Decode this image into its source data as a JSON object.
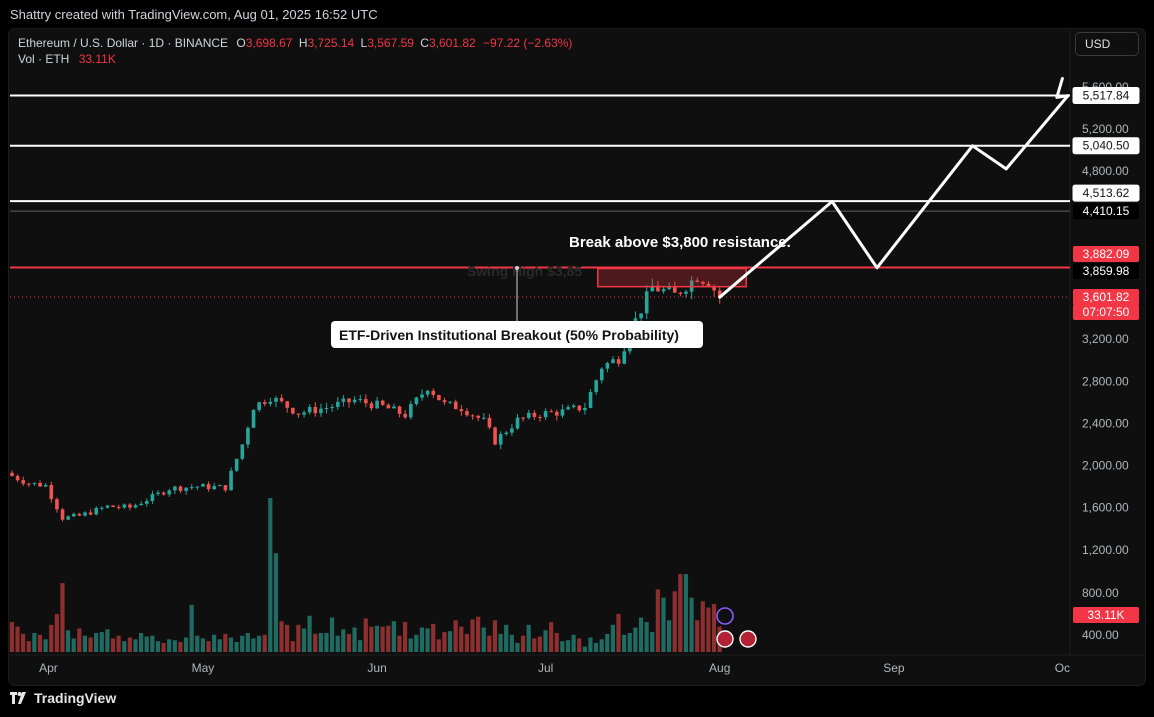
{
  "header": {
    "created_by": "Shattry created with TradingView.com, Aug 01, 2025 16:52 UTC"
  },
  "legend": {
    "symbol": "Ethereum / U.S. Dollar · 1D · BINANCE",
    "o_label": "O",
    "o": "3,698.67",
    "h_label": "H",
    "h": "3,725.14",
    "l_label": "L",
    "l": "3,567.59",
    "c_label": "C",
    "c": "3,601.82",
    "change": "−97.22 (−2.63%)",
    "vol_label": "Vol · ETH",
    "vol": "33.11K"
  },
  "currency_button": "USD",
  "footer": {
    "brand": "TradingView"
  },
  "colors": {
    "up": "#26a69a",
    "down": "#ef5350",
    "up_vol": "#1f6b62",
    "down_vol": "#8e2f2f",
    "resistance": "#f23645",
    "level_line": "#ffffff",
    "background": "#0f0f0f"
  },
  "chart_data": {
    "type": "candlestick",
    "title": "Ethereum / U.S. Dollar · 1D · BINANCE",
    "ylim": [
      300,
      5850
    ],
    "y_ticks": [
      "5,600.00",
      "5,200.00",
      "4,800.00",
      "3,200.00",
      "2,800.00",
      "2,400.00",
      "2,000.00",
      "1,600.00",
      "1,200.00",
      "800.00",
      "400.00"
    ],
    "x_ticks": [
      "Apr",
      "May",
      "Jun",
      "Jul",
      "Aug",
      "Sep",
      "Oc"
    ],
    "price_path": [
      [
        "2025-03-28",
        1900
      ],
      [
        "2025-03-31",
        1830
      ],
      [
        "2025-04-03",
        1810
      ],
      [
        "2025-04-06",
        1500
      ],
      [
        "2025-04-09",
        1520
      ],
      [
        "2025-04-14",
        1610
      ],
      [
        "2025-04-18",
        1600
      ],
      [
        "2025-04-22",
        1700
      ],
      [
        "2025-04-25",
        1780
      ],
      [
        "2025-04-30",
        1800
      ],
      [
        "2025-05-05",
        1790
      ],
      [
        "2025-05-08",
        2200
      ],
      [
        "2025-05-10",
        2560
      ],
      [
        "2025-05-13",
        2650
      ],
      [
        "2025-05-18",
        2500
      ],
      [
        "2025-05-23",
        2550
      ],
      [
        "2025-05-28",
        2620
      ],
      [
        "2025-06-02",
        2560
      ],
      [
        "2025-06-06",
        2480
      ],
      [
        "2025-06-10",
        2750
      ],
      [
        "2025-06-13",
        2580
      ],
      [
        "2025-06-16",
        2550
      ],
      [
        "2025-06-20",
        2420
      ],
      [
        "2025-06-22",
        2230
      ],
      [
        "2025-06-26",
        2430
      ],
      [
        "2025-06-30",
        2490
      ],
      [
        "2025-07-04",
        2510
      ],
      [
        "2025-07-08",
        2560
      ],
      [
        "2025-07-11",
        2940
      ],
      [
        "2025-07-14",
        3020
      ],
      [
        "2025-07-17",
        3380
      ],
      [
        "2025-07-20",
        3700
      ],
      [
        "2025-07-24",
        3620
      ],
      [
        "2025-07-28",
        3800
      ],
      [
        "2025-07-30",
        3750
      ],
      [
        "2025-08-01",
        3601.82
      ]
    ],
    "volume_bars": [
      330,
      280,
      200,
      120,
      210,
      190,
      140,
      300,
      420,
      760,
      240,
      150,
      260,
      180,
      160,
      210,
      220,
      250,
      150,
      180,
      120,
      160,
      140,
      210,
      170,
      180,
      120,
      100,
      140,
      130,
      110,
      160,
      520,
      180,
      150,
      120,
      190,
      140,
      200,
      160,
      110,
      180,
      210,
      150,
      180,
      190,
      1700,
      1090,
      340,
      300,
      120,
      300,
      260,
      400,
      200,
      210,
      210,
      380,
      180,
      250,
      200,
      270,
      130,
      370,
      280,
      290,
      280,
      290,
      340,
      180,
      330,
      150,
      190,
      270,
      260,
      310,
      140,
      220,
      230,
      350,
      280,
      200,
      360,
      390,
      270,
      180,
      350,
      200,
      300,
      190,
      100,
      180,
      300,
      150,
      170,
      240,
      330,
      210,
      120,
      130,
      190,
      150,
      60,
      160,
      100,
      140,
      200,
      300,
      420,
      190,
      210,
      270,
      380,
      330,
      220,
      690,
      600,
      350,
      670,
      860,
      860,
      600,
      350,
      560,
      490,
      530,
      280,
      360,
      330
    ],
    "levels": [
      {
        "label": "5,517.84",
        "value": 5517.84,
        "color": "#ffffff"
      },
      {
        "label": "5,040.50",
        "value": 5040.5,
        "color": "#ffffff"
      },
      {
        "label": "4,513.62",
        "value": 4513.62,
        "color": "#ffffff"
      },
      {
        "label": "4,410.15",
        "value": 4410.15,
        "color": "#ffffff"
      },
      {
        "label": "3,882.09",
        "value": 3882.09,
        "color": "#f23645"
      },
      {
        "label": "3,859.98",
        "value": 3859.98,
        "color": "#ffffff"
      },
      {
        "label": "3,601.82",
        "value": 3601.82,
        "color": "#f23645"
      }
    ],
    "countdown": "07:07:50",
    "volume_tag": "33.11K",
    "resistance_box": {
      "from": "2025-07-11",
      "to": "2025-08-05",
      "low": 3700,
      "high": 3882.09
    },
    "projection_path": [
      [
        "2025-08-01",
        3600
      ],
      [
        "2025-08-21",
        4510
      ],
      [
        "2025-08-29",
        3880
      ],
      [
        "2025-09-15",
        5040
      ],
      [
        "2025-09-21",
        4820
      ],
      [
        "2025-10-02",
        5517
      ],
      [
        "2025-09-30",
        5500
      ],
      [
        "2025-10-01",
        5680
      ]
    ],
    "annotations": [
      {
        "text": "Break above $3,800 resistance.",
        "kind": "plain"
      },
      {
        "text": "ETF-Driven Institutional Breakout (50% Probability)",
        "kind": "box"
      },
      {
        "text": "Swing High $3,85",
        "kind": "faded"
      }
    ]
  }
}
